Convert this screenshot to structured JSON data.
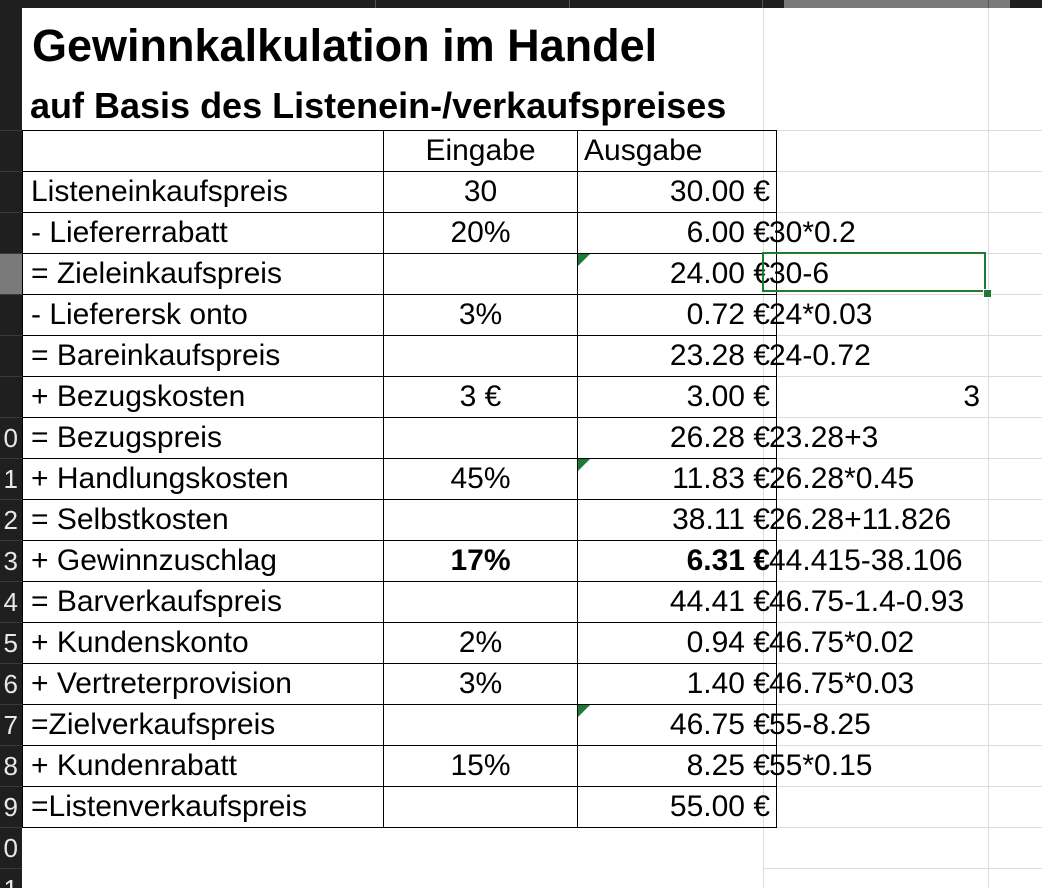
{
  "sheet": {
    "title": "Gewinnkalkulation im Handel",
    "subtitle": "auf Basis des Listenein-/verkaufspreises",
    "headers": {
      "label": "",
      "input": "Eingabe",
      "output": "Ausgabe"
    },
    "rows": [
      {
        "label": "Listeneinkaufspreis",
        "input": "30",
        "output": "30.00 €",
        "note": ""
      },
      {
        "label": " - Liefererrabatt",
        "input": "20%",
        "output": "6.00 €",
        "note": "30*0.2"
      },
      {
        "label": " = Zieleinkaufspreis",
        "input": "",
        "output": "24.00 €",
        "note": "30-6"
      },
      {
        "label": " -  Lieferersk onto",
        "input": "3%",
        "output": "0.72 €",
        "note": "24*0.03"
      },
      {
        "label": " = Bareinkaufspreis",
        "input": "",
        "output": "23.28 €",
        "note": "24-0.72"
      },
      {
        "label": " + Bezugskosten",
        "input": "3 €",
        "output": "3.00 €",
        "note": "3"
      },
      {
        "label": " =  Bezugspreis",
        "input": "",
        "output": "26.28 €",
        "note": "23.28+3"
      },
      {
        "label": " + Handlungskosten",
        "input": "45%",
        "output": "11.83 €",
        "note": "26.28*0.45"
      },
      {
        "label": " = Selbstkosten",
        "input": "",
        "output": "38.11 €",
        "note": "26.28+11.826"
      },
      {
        "label": " + Gewinnzuschlag",
        "input": "17%",
        "output": "6.31 €",
        "note": "44.415-38.106"
      },
      {
        "label": " = Barverkaufspreis",
        "input": "",
        "output": "44.41 €",
        "note": "46.75-1.4-0.93"
      },
      {
        "label": " + Kundenskonto",
        "input": "2%",
        "output": "0.94 €",
        "note": "46.75*0.02"
      },
      {
        "label": " + Vertreterprovision",
        "input": "3%",
        "output": "1.40 €",
        "note": "46.75*0.03"
      },
      {
        "label": " =Zielverkaufspreis",
        "input": "",
        "output": "46.75 €",
        "note": "55-8.25"
      },
      {
        "label": " + Kundenrabatt",
        "input": "15%",
        "output": "8.25 €",
        "note": "55*0.15"
      },
      {
        "label": " =Listenverkaufspreis",
        "input": "",
        "output": "55.00 €",
        "note": ""
      }
    ]
  },
  "row_numbers": [
    "0",
    "1",
    "2",
    "3",
    "4",
    "5",
    "6",
    "7",
    "8",
    "9",
    "0",
    "1"
  ],
  "colors": {
    "selection": "#1e7b34",
    "header_bg": "#1f1f1f"
  }
}
